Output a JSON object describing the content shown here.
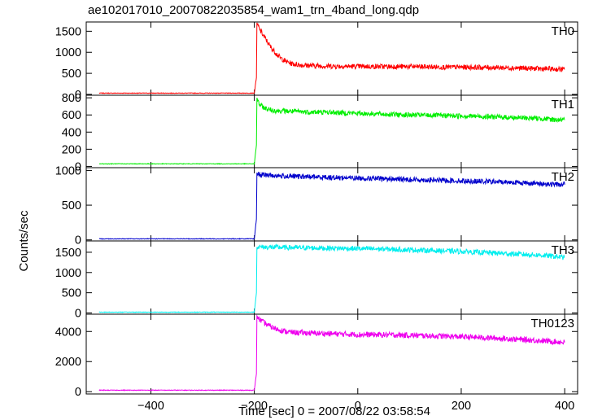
{
  "title": "ae102017010_20070822035854_wam1_trn_4band_long.qdp",
  "ylabel": "Counts/sec",
  "xlabel": "Time [sec] 0 = 2007/08/22 03:58:54",
  "chart_data": {
    "type": "line",
    "title": "ae102017010_20070822035854_wam1_trn_4band_long.qdp",
    "xlabel": "Time [sec] 0 = 2007/08/22 03:58:54",
    "ylabel": "Counts/sec",
    "xlim": [
      -525,
      425
    ],
    "x_ticks": [
      -400,
      -200,
      0,
      200,
      400
    ],
    "x_tick_labels": [
      "−400",
      "−200",
      "0",
      "200",
      "400"
    ],
    "grid": false,
    "panels": [
      {
        "name": "TH0",
        "color": "#ff0000",
        "ylim": [
          -20,
          1720
        ],
        "y_ticks": [
          0,
          500,
          1000,
          1500
        ],
        "y_tick_labels": [
          "0",
          "500",
          "1000",
          "1500"
        ],
        "series": {
          "x": [
            -500,
            -205,
            -200,
            -196,
            -195,
            -190,
            -180,
            -170,
            -160,
            -150,
            -140,
            -130,
            -120,
            -100,
            -80,
            -50,
            0,
            50,
            100,
            150,
            200,
            250,
            300,
            350,
            380,
            400
          ],
          "y": [
            30,
            30,
            30,
            400,
            1700,
            1550,
            1350,
            1150,
            1000,
            870,
            790,
            740,
            710,
            690,
            680,
            670,
            665,
            660,
            660,
            650,
            645,
            640,
            630,
            610,
            600,
            590
          ]
        }
      },
      {
        "name": "TH1",
        "color": "#00ee00",
        "ylim": [
          -15,
          830
        ],
        "y_ticks": [
          0,
          200,
          400,
          600,
          800
        ],
        "y_tick_labels": [
          "0",
          "200",
          "400",
          "600",
          "800"
        ],
        "series": {
          "x": [
            -500,
            -205,
            -200,
            -196,
            -195,
            -190,
            -180,
            -170,
            -160,
            -140,
            -120,
            -100,
            -50,
            0,
            50,
            100,
            150,
            200,
            250,
            300,
            350,
            380,
            400
          ],
          "y": [
            30,
            30,
            30,
            250,
            800,
            720,
            680,
            660,
            650,
            645,
            640,
            635,
            630,
            620,
            610,
            600,
            595,
            590,
            580,
            570,
            560,
            545,
            540
          ]
        }
      },
      {
        "name": "TH2",
        "color": "#0000cc",
        "ylim": [
          -15,
          1040
        ],
        "y_ticks": [
          0,
          500,
          1000
        ],
        "y_tick_labels": [
          "0",
          "500",
          "1000"
        ],
        "series": {
          "x": [
            -500,
            -205,
            -200,
            -196,
            -195,
            -190,
            -150,
            -100,
            -50,
            0,
            50,
            100,
            150,
            200,
            250,
            300,
            350,
            380,
            400
          ],
          "y": [
            15,
            15,
            15,
            300,
            960,
            940,
            920,
            910,
            900,
            890,
            880,
            870,
            860,
            850,
            840,
            830,
            810,
            800,
            795
          ]
        }
      },
      {
        "name": "TH3",
        "color": "#00eeee",
        "ylim": [
          -30,
          1780
        ],
        "y_ticks": [
          0,
          500,
          1000,
          1500
        ],
        "y_tick_labels": [
          "0",
          "500",
          "1000",
          "1500"
        ],
        "series": {
          "x": [
            -500,
            -205,
            -200,
            -196,
            -195,
            -190,
            -150,
            -100,
            -50,
            0,
            50,
            100,
            150,
            200,
            250,
            300,
            350,
            380,
            400
          ],
          "y": [
            20,
            20,
            20,
            500,
            1620,
            1630,
            1620,
            1610,
            1600,
            1590,
            1580,
            1560,
            1540,
            1520,
            1490,
            1460,
            1430,
            1400,
            1370
          ]
        }
      },
      {
        "name": "TH0123",
        "color": "#ee00ee",
        "ylim": [
          -150,
          5150
        ],
        "y_ticks": [
          0,
          2000,
          4000
        ],
        "y_tick_labels": [
          "0",
          "2000",
          "4000"
        ],
        "series": {
          "x": [
            -500,
            -205,
            -200,
            -196,
            -195,
            -190,
            -180,
            -170,
            -160,
            -150,
            -140,
            -130,
            -120,
            -100,
            -50,
            0,
            50,
            100,
            150,
            200,
            250,
            300,
            350,
            380,
            400
          ],
          "y": [
            100,
            100,
            100,
            1200,
            5050,
            4800,
            4550,
            4350,
            4200,
            4100,
            4000,
            3950,
            3930,
            3900,
            3850,
            3800,
            3780,
            3750,
            3700,
            3650,
            3580,
            3500,
            3400,
            3330,
            3280
          ]
        }
      }
    ]
  }
}
